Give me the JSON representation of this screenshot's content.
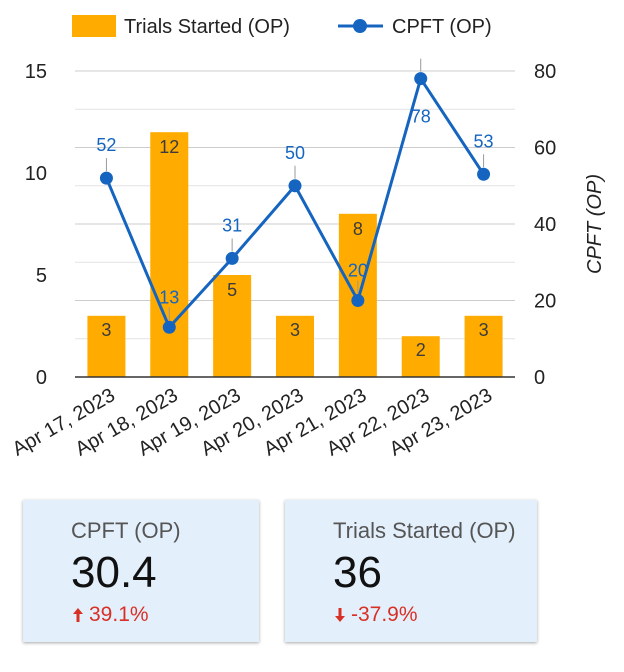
{
  "chart_data": {
    "type": "bar+line",
    "categories": [
      "Apr 17, 2023",
      "Apr 18, 2023",
      "Apr 19, 2023",
      "Apr 20, 2023",
      "Apr 21, 2023",
      "Apr 22, 2023",
      "Apr 23, 2023"
    ],
    "series": [
      {
        "name": "Trials Started (OP)",
        "type": "bar",
        "axis": "left",
        "values": [
          3,
          12,
          5,
          3,
          8,
          2,
          3
        ],
        "color": "#ffab00"
      },
      {
        "name": "CPFT (OP)",
        "type": "line",
        "axis": "right",
        "values": [
          52,
          13,
          31,
          50,
          20,
          78,
          53
        ],
        "color": "#1565c0"
      }
    ],
    "y_left": {
      "ticks": [
        0,
        5,
        10,
        15
      ],
      "ylim": [
        0,
        15
      ],
      "label": ""
    },
    "y_right": {
      "ticks": [
        0,
        20,
        40,
        60,
        80
      ],
      "ylim": [
        0,
        80
      ],
      "label": "CPFT (OP)"
    },
    "grid": true,
    "legend": "top"
  },
  "scorecards": [
    {
      "title": "CPFT (OP)",
      "value": "30.4",
      "delta": "39.1%",
      "direction": "up",
      "color": "#d93025"
    },
    {
      "title": "Trials Started (OP)",
      "value": "36",
      "delta": "-37.9%",
      "direction": "down",
      "color": "#d93025"
    }
  ]
}
